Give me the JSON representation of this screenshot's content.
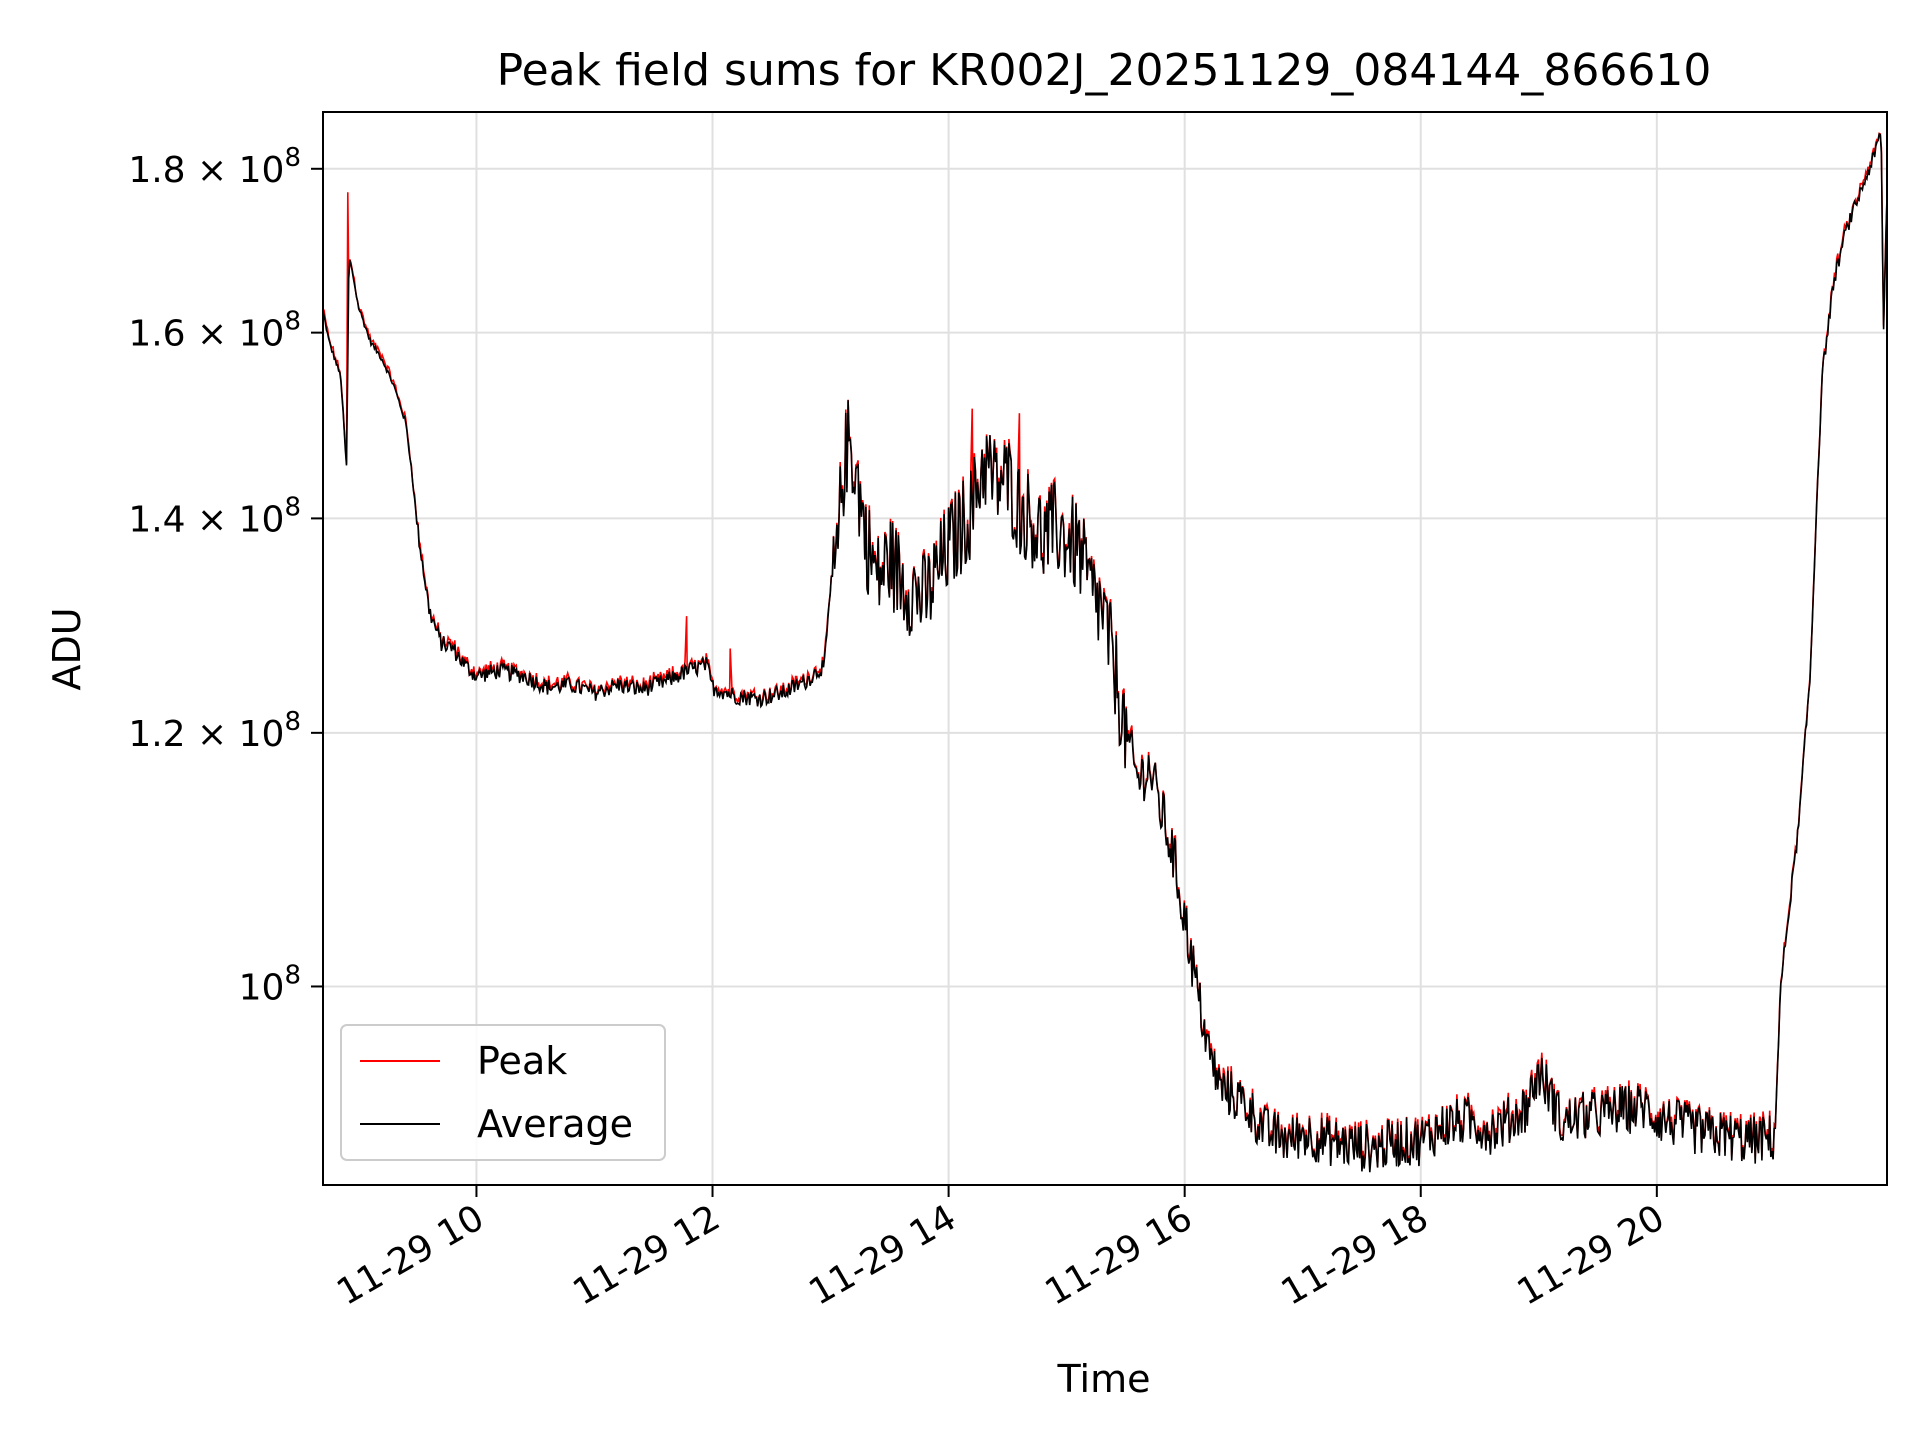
{
  "chart_data": {
    "type": "line",
    "title": "Peak field sums for KR002J_20251129_084144_866610",
    "xlabel": "Time",
    "ylabel": "ADU",
    "yscale": "log",
    "xlim_hours": [
      8.7,
      21.95
    ],
    "ylim": [
      86700000,
      187500000
    ],
    "grid": true,
    "legend_position": "lower-left",
    "x_ticks": [
      {
        "value": 10,
        "label": "11-29 10"
      },
      {
        "value": 12,
        "label": "11-29 12"
      },
      {
        "value": 14,
        "label": "11-29 14"
      },
      {
        "value": 16,
        "label": "11-29 16"
      },
      {
        "value": 18,
        "label": "11-29 18"
      },
      {
        "value": 20,
        "label": "11-29 20"
      }
    ],
    "y_ticks": [
      {
        "value": 100000000,
        "mantissa": "",
        "exponent": "8"
      },
      {
        "value": 120000000,
        "mantissa": "1.2",
        "exponent": "8"
      },
      {
        "value": 140000000,
        "mantissa": "1.4",
        "exponent": "8"
      },
      {
        "value": 160000000,
        "mantissa": "1.6",
        "exponent": "8"
      },
      {
        "value": 180000000,
        "mantissa": "1.8",
        "exponent": "8"
      }
    ],
    "series": [
      {
        "name": "Peak",
        "color": "#ff0000",
        "spikes": [
          {
            "x": 8.91,
            "y": 177000000
          },
          {
            "x": 11.78,
            "y": 130500000
          },
          {
            "x": 12.15,
            "y": 127500000
          },
          {
            "x": 14.2,
            "y": 151500000
          },
          {
            "x": 14.6,
            "y": 151000000
          }
        ]
      },
      {
        "name": "Average",
        "color": "#000000",
        "x": [
          8.7,
          8.75,
          8.8,
          8.85,
          8.9,
          8.92,
          8.95,
          9.0,
          9.1,
          9.2,
          9.3,
          9.4,
          9.45,
          9.5,
          9.6,
          9.7,
          9.8,
          9.9,
          10.0,
          10.2,
          10.4,
          10.6,
          10.8,
          11.0,
          11.2,
          11.4,
          11.6,
          11.8,
          11.95,
          12.0,
          12.2,
          12.4,
          12.6,
          12.8,
          12.95,
          13.0,
          13.05,
          13.1,
          13.15,
          13.2,
          13.3,
          13.4,
          13.5,
          13.6,
          13.8,
          14.0,
          14.2,
          14.3,
          14.4,
          14.5,
          14.6,
          14.7,
          14.8,
          14.9,
          15.0,
          15.1,
          15.2,
          15.3,
          15.4,
          15.5,
          15.6,
          15.7,
          15.8,
          15.9,
          16.0,
          16.1,
          16.2,
          16.3,
          16.5,
          16.7,
          16.9,
          17.0,
          17.2,
          17.4,
          17.6,
          17.8,
          18.0,
          18.2,
          18.4,
          18.6,
          18.8,
          18.9,
          19.0,
          19.1,
          19.2,
          19.3,
          19.5,
          19.7,
          19.9,
          20.0,
          20.2,
          20.4,
          20.6,
          20.8,
          21.0,
          21.05,
          21.1,
          21.15,
          21.2,
          21.3,
          21.4,
          21.5,
          21.6,
          21.7,
          21.8,
          21.85,
          21.9,
          21.92,
          21.95
        ],
        "y": [
          162500000,
          159000000,
          157000000,
          155000000,
          145000000,
          169000000,
          167000000,
          163000000,
          159000000,
          157000000,
          154000000,
          150000000,
          145000000,
          139000000,
          131000000,
          128000000,
          127500000,
          126000000,
          125000000,
          125500000,
          125000000,
          124000000,
          124200000,
          123500000,
          124200000,
          123800000,
          124500000,
          125500000,
          126000000,
          124000000,
          123200000,
          123000000,
          123500000,
          124600000,
          126000000,
          133000000,
          135000000,
          144000000,
          148000000,
          146000000,
          138000000,
          134000000,
          136000000,
          134000000,
          132000000,
          137000000,
          141000000,
          146000000,
          143500000,
          144000000,
          141000000,
          140000000,
          138000000,
          139000000,
          138000000,
          137000000,
          133000000,
          131000000,
          126000000,
          120000000,
          116000000,
          117000000,
          113500000,
          110000000,
          105000000,
          100000000,
          95500000,
          93000000,
          92000000,
          90000000,
          89500000,
          90000000,
          89500000,
          89200000,
          89000000,
          89400000,
          89500000,
          90500000,
          90800000,
          90200000,
          91000000,
          91800000,
          94000000,
          92500000,
          90500000,
          91000000,
          91200000,
          91500000,
          91700000,
          91000000,
          90500000,
          90000000,
          89800000,
          89500000,
          89700000,
          100000000,
          104000000,
          108000000,
          112000000,
          125000000,
          155000000,
          166000000,
          172000000,
          176000000,
          180000000,
          182000000,
          185000000,
          160000000,
          176000000
        ]
      }
    ]
  }
}
